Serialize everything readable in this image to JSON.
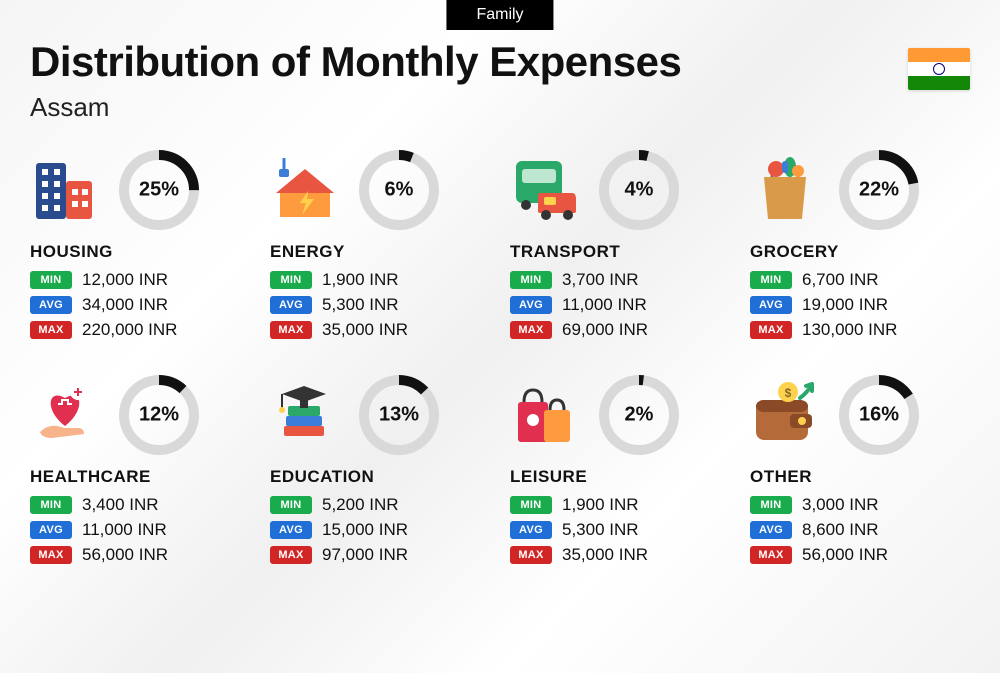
{
  "header": {
    "pill": "Family",
    "title": "Distribution of Monthly Expenses",
    "subtitle": "Assam",
    "flag_colors": {
      "top": "#ff9933",
      "mid": "#ffffff",
      "bot": "#138808",
      "chakra": "#000080"
    }
  },
  "style": {
    "donut_track": "#d9d9d9",
    "donut_fill": "#111111",
    "donut_stroke_width": 10,
    "donut_radius": 35,
    "badge_colors": {
      "min": "#1aab4c",
      "avg": "#1f6fd6",
      "max": "#d22626"
    },
    "badge_labels": {
      "min": "MIN",
      "avg": "AVG",
      "max": "MAX"
    },
    "currency": "INR"
  },
  "categories": [
    {
      "key": "housing",
      "name": "HOUSING",
      "percent": 25,
      "min": "12,000",
      "avg": "34,000",
      "max": "220,000",
      "icon": "housing"
    },
    {
      "key": "energy",
      "name": "ENERGY",
      "percent": 6,
      "min": "1,900",
      "avg": "5,300",
      "max": "35,000",
      "icon": "energy"
    },
    {
      "key": "transport",
      "name": "TRANSPORT",
      "percent": 4,
      "min": "3,700",
      "avg": "11,000",
      "max": "69,000",
      "icon": "transport"
    },
    {
      "key": "grocery",
      "name": "GROCERY",
      "percent": 22,
      "min": "6,700",
      "avg": "19,000",
      "max": "130,000",
      "icon": "grocery"
    },
    {
      "key": "healthcare",
      "name": "HEALTHCARE",
      "percent": 12,
      "min": "3,400",
      "avg": "11,000",
      "max": "56,000",
      "icon": "healthcare"
    },
    {
      "key": "education",
      "name": "EDUCATION",
      "percent": 13,
      "min": "5,200",
      "avg": "15,000",
      "max": "97,000",
      "icon": "education"
    },
    {
      "key": "leisure",
      "name": "LEISURE",
      "percent": 2,
      "min": "1,900",
      "avg": "5,300",
      "max": "35,000",
      "icon": "leisure"
    },
    {
      "key": "other",
      "name": "OTHER",
      "percent": 16,
      "min": "3,000",
      "avg": "8,600",
      "max": "56,000",
      "icon": "other"
    }
  ],
  "icons": {
    "housing": {
      "type": "buildings",
      "colors": [
        "#2a4b8d",
        "#e85642",
        "#ffffff"
      ]
    },
    "energy": {
      "type": "house-bolt",
      "colors": [
        "#ff9b3f",
        "#ffd24d",
        "#3b7dd8",
        "#e85642"
      ]
    },
    "transport": {
      "type": "bus-car",
      "colors": [
        "#29a869",
        "#e85642",
        "#ffd24d",
        "#333"
      ]
    },
    "grocery": {
      "type": "bag-veg",
      "colors": [
        "#d99a4a",
        "#29a869",
        "#e85642",
        "#ff9b3f",
        "#3b7dd8"
      ]
    },
    "healthcare": {
      "type": "heart-hand",
      "colors": [
        "#e02f4f",
        "#f7b48a",
        "#ffffff"
      ]
    },
    "education": {
      "type": "grad-books",
      "colors": [
        "#333",
        "#29a869",
        "#3b7dd8",
        "#e85642",
        "#ffd24d"
      ]
    },
    "leisure": {
      "type": "shopping-bags",
      "colors": [
        "#e02f4f",
        "#ff9b3f",
        "#333"
      ]
    },
    "other": {
      "type": "wallet-arrow",
      "colors": [
        "#b56a3a",
        "#8a4a28",
        "#ffd24d",
        "#29a869"
      ]
    }
  }
}
